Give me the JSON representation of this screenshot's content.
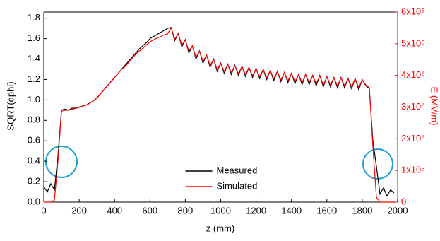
{
  "chart_data": {
    "type": "line",
    "x_label": "z (mm)",
    "y_label": "SQRT(dphi)",
    "y2_label": "E (MV/m)",
    "xlim": [
      0,
      2000
    ],
    "xticks": [
      0,
      200,
      400,
      600,
      800,
      1000,
      1200,
      1400,
      1600,
      1800,
      2000
    ],
    "ylim": [
      0,
      1.86
    ],
    "yticks": [
      {
        "value": 0,
        "label": "0.0"
      },
      0.2,
      0.4,
      0.6,
      0.8,
      {
        "value": 1,
        "label": "1.0"
      },
      1.2,
      1.4,
      1.6,
      1.8
    ],
    "y2lim": [
      0,
      6000000
    ],
    "y2ticks": [
      0,
      {
        "value": 1000000,
        "label": "1x10⁶"
      },
      {
        "value": 2000000,
        "label": "2x10⁶"
      },
      {
        "value": 3000000,
        "label": "3x10⁶"
      },
      {
        "value": 4000000,
        "label": "4x10⁶"
      },
      {
        "value": 5000000,
        "label": "5x10⁶"
      },
      {
        "value": 6000000,
        "label": "6x10⁶"
      }
    ],
    "y2_color": "#ff0000",
    "legend": "lower center",
    "x": [
      0,
      20,
      40,
      60,
      80,
      100,
      120,
      140,
      160,
      180,
      200,
      220,
      240,
      260,
      280,
      300,
      320,
      340,
      360,
      380,
      400,
      420,
      440,
      460,
      480,
      500,
      520,
      540,
      560,
      580,
      600,
      620,
      640,
      660,
      680,
      700,
      720,
      740,
      760,
      780,
      800,
      820,
      840,
      860,
      880,
      900,
      920,
      940,
      960,
      980,
      1000,
      1020,
      1040,
      1060,
      1080,
      1100,
      1120,
      1140,
      1160,
      1180,
      1200,
      1220,
      1240,
      1260,
      1280,
      1300,
      1320,
      1340,
      1360,
      1380,
      1400,
      1420,
      1440,
      1460,
      1480,
      1500,
      1520,
      1540,
      1560,
      1580,
      1600,
      1620,
      1640,
      1660,
      1680,
      1700,
      1720,
      1740,
      1760,
      1780,
      1800,
      1820,
      1840,
      1860,
      1880,
      1900,
      1920,
      1940,
      1960,
      1980,
      2000
    ],
    "series": [
      {
        "name": "Measured",
        "color": "#000000",
        "values": [
          0.15,
          0.1,
          0.18,
          0.12,
          0.45,
          0.9,
          0.91,
          0.9,
          0.92,
          0.92,
          0.93,
          0.94,
          0.95,
          0.97,
          0.99,
          1.02,
          1.06,
          1.1,
          1.14,
          1.18,
          1.22,
          1.26,
          1.3,
          1.34,
          1.38,
          1.42,
          1.46,
          1.5,
          1.53,
          1.56,
          1.6,
          1.62,
          1.64,
          1.66,
          1.68,
          1.7,
          1.71,
          1.58,
          1.65,
          1.52,
          1.59,
          1.46,
          1.53,
          1.4,
          1.48,
          1.36,
          1.44,
          1.32,
          1.4,
          1.28,
          1.36,
          1.26,
          1.35,
          1.25,
          1.34,
          1.24,
          1.33,
          1.23,
          1.32,
          1.22,
          1.31,
          1.21,
          1.3,
          1.2,
          1.29,
          1.19,
          1.28,
          1.18,
          1.27,
          1.17,
          1.26,
          1.16,
          1.25,
          1.15,
          1.25,
          1.15,
          1.24,
          1.14,
          1.24,
          1.13,
          1.23,
          1.13,
          1.22,
          1.12,
          1.22,
          1.12,
          1.21,
          1.11,
          1.21,
          1.1,
          1.2,
          1.14,
          1.11,
          0.6,
          0.35,
          0.08,
          0.14,
          0.06,
          0.12,
          0.09,
          null
        ]
      },
      {
        "name": "Simulated",
        "color": "#ff0000",
        "axis": "y2",
        "values": [
          0,
          0,
          0,
          60000,
          1290000,
          2870000,
          2900000,
          2900000,
          2930000,
          2960000,
          2990000,
          3030000,
          3060000,
          3120000,
          3190000,
          3280000,
          3410000,
          3540000,
          3670000,
          3800000,
          3930000,
          4060000,
          4190000,
          4280000,
          4410000,
          4540000,
          4670000,
          4770000,
          4860000,
          4960000,
          5060000,
          5120000,
          5180000,
          5220000,
          5280000,
          5310000,
          5510000,
          5150000,
          5310000,
          4960000,
          5120000,
          4770000,
          4930000,
          4570000,
          4770000,
          4440000,
          4640000,
          4310000,
          4510000,
          4190000,
          4380000,
          4120000,
          4350000,
          4090000,
          4310000,
          4060000,
          4280000,
          4030000,
          4250000,
          3990000,
          4220000,
          3960000,
          4190000,
          3930000,
          4150000,
          3900000,
          4120000,
          3860000,
          4090000,
          3830000,
          4060000,
          3800000,
          4030000,
          3770000,
          4030000,
          3770000,
          3990000,
          3740000,
          3990000,
          3700000,
          3960000,
          3700000,
          3930000,
          3670000,
          3930000,
          3670000,
          3900000,
          3640000,
          3900000,
          3610000,
          3860000,
          3700000,
          3610000,
          1770000,
          160000,
          0,
          0,
          0,
          0,
          0,
          null
        ]
      }
    ]
  }
}
